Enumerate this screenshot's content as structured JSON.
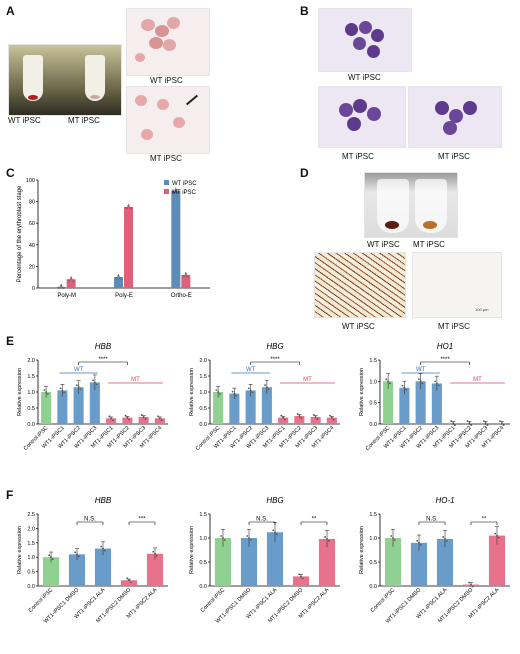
{
  "panels": {
    "A": {
      "letter": "A",
      "caption_left_wt": "WT iPSC",
      "caption_left_mt": "MT iPSC",
      "caption_right_top": "WT iPSC",
      "caption_right_bottom": "MT iPSC"
    },
    "B": {
      "letter": "B",
      "caption_top": "WT iPSC",
      "caption_bottom_left": "MT iPSC",
      "caption_bottom_right": "MT iPSC"
    },
    "C": {
      "letter": "C"
    },
    "D": {
      "letter": "D",
      "caption_tube_wt": "WT iPSC",
      "caption_tube_mt": "MT iPSC",
      "caption_stain_wt": "WT iPSC",
      "caption_stain_mt": "MT iPSC",
      "scale_text": "100 µm"
    },
    "E": {
      "letter": "E"
    },
    "F": {
      "letter": "F"
    }
  },
  "chart_data": [
    {
      "id": "C",
      "type": "bar",
      "categories": [
        "Poly-M",
        "Poly-E",
        "Ortho-E"
      ],
      "ylabel": "Percentage of the erythroblast stage",
      "ylim": [
        0,
        100
      ],
      "yticks": [
        0,
        20,
        40,
        60,
        80,
        100
      ],
      "series": [
        {
          "name": "WT iPSC",
          "color": "#5b8db8",
          "values": [
            1,
            10,
            90
          ]
        },
        {
          "name": "MT iPSC",
          "color": "#e0607a",
          "values": [
            8,
            75,
            12
          ]
        }
      ],
      "legend": "top-right"
    },
    {
      "id": "E1",
      "type": "bar",
      "title": "HBB",
      "ylabel": "Relative expression",
      "categories": [
        "Control iPSC",
        "WT1-iPSC1",
        "WT1-iPSC2",
        "WT1-iPSC3",
        "MT1-iPSC1",
        "MT1-iPSC2",
        "MT1-iPSC3",
        "MT1-iPSC4"
      ],
      "values": [
        1.0,
        1.05,
        1.15,
        1.3,
        0.18,
        0.2,
        0.22,
        0.18
      ],
      "colors": [
        "#90d090",
        "#6a9cc9",
        "#6a9cc9",
        "#6a9cc9",
        "#e8728c",
        "#e8728c",
        "#e8728c",
        "#e8728c"
      ],
      "ylim": [
        0,
        2.0
      ],
      "yticks": [
        0.0,
        0.5,
        1.0,
        1.5,
        2.0
      ],
      "groups": {
        "wt": "WT",
        "mt": "MT"
      },
      "significance": "****"
    },
    {
      "id": "E2",
      "type": "bar",
      "title": "HBG",
      "ylabel": "Relative expression",
      "categories": [
        "Control iPSC",
        "WT1-iPSC1",
        "WT1-iPSC2",
        "WT1-iPSC3",
        "MT1-iPSC1",
        "MT1-iPSC2",
        "MT1-iPSC3",
        "MT1-iPSC4"
      ],
      "values": [
        1.0,
        0.95,
        1.05,
        1.15,
        0.2,
        0.25,
        0.22,
        0.2
      ],
      "colors": [
        "#90d090",
        "#6a9cc9",
        "#6a9cc9",
        "#6a9cc9",
        "#e8728c",
        "#e8728c",
        "#e8728c",
        "#e8728c"
      ],
      "ylim": [
        0,
        2.0
      ],
      "yticks": [
        0.0,
        0.5,
        1.0,
        1.5,
        2.0
      ],
      "groups": {
        "wt": "WT",
        "mt": "MT"
      },
      "significance": "****"
    },
    {
      "id": "E3",
      "type": "bar",
      "title": "HO1",
      "ylabel": "Relative expression",
      "categories": [
        "Control iPSC",
        "WT1-iPSC1",
        "WT1-iPSC2",
        "WT1-iPSC3",
        "MT1-iPSC1",
        "MT1-iPSC2",
        "MT1-iPSC3",
        "MT1-iPSC4"
      ],
      "values": [
        1.0,
        0.85,
        1.0,
        0.95,
        0.02,
        0.02,
        0.02,
        0.02
      ],
      "colors": [
        "#90d090",
        "#6a9cc9",
        "#6a9cc9",
        "#6a9cc9",
        "#e8728c",
        "#e8728c",
        "#e8728c",
        "#e8728c"
      ],
      "ylim": [
        0,
        1.5
      ],
      "yticks": [
        0.0,
        0.5,
        1.0,
        1.5
      ],
      "groups": {
        "wt": "WT",
        "mt": "MT"
      },
      "significance": "****"
    },
    {
      "id": "F1",
      "type": "bar",
      "title": "HBB",
      "ylabel": "Relative expression",
      "categories": [
        "Control iPSC",
        "WT1-iPSC1 DMSO",
        "WT1-iPSC1 ALA",
        "MT1-iPSC2 DMSO",
        "MT1-iPSC2 ALA"
      ],
      "values": [
        1.0,
        1.1,
        1.3,
        0.2,
        1.12
      ],
      "colors": [
        "#90d090",
        "#6a9cc9",
        "#6a9cc9",
        "#e8728c",
        "#e8728c"
      ],
      "ylim": [
        0,
        2.5
      ],
      "yticks": [
        0.0,
        0.5,
        1.0,
        1.5,
        2.0,
        2.5
      ],
      "sig_left": "N.S.",
      "sig_right": "***"
    },
    {
      "id": "F2",
      "type": "bar",
      "title": "HBG",
      "ylabel": "Relative expression",
      "categories": [
        "Control iPSC",
        "WT1-iPSC1 DMSO",
        "WT1-iPSC1 ALA",
        "MT1-iPSC2 DMSO",
        "MT1-iPSC2 ALA"
      ],
      "values": [
        1.0,
        1.0,
        1.12,
        0.2,
        0.98
      ],
      "colors": [
        "#90d090",
        "#6a9cc9",
        "#6a9cc9",
        "#e8728c",
        "#e8728c"
      ],
      "ylim": [
        0,
        1.5
      ],
      "yticks": [
        0.0,
        0.5,
        1.0,
        1.5
      ],
      "sig_left": "N.S.",
      "sig_right": "**"
    },
    {
      "id": "F3",
      "type": "bar",
      "title": "HO-1",
      "ylabel": "Relative expression",
      "categories": [
        "Control iPSC",
        "WT1-iPSC1 DMSO",
        "WT1-iPSC1 ALA",
        "MT1-iPSC2 DMSO",
        "MT1-iPSC2 ALA"
      ],
      "values": [
        1.0,
        0.9,
        0.98,
        0.03,
        1.05
      ],
      "colors": [
        "#90d090",
        "#6a9cc9",
        "#6a9cc9",
        "#e8728c",
        "#e8728c"
      ],
      "ylim": [
        0,
        1.5
      ],
      "yticks": [
        0.0,
        0.5,
        1.0,
        1.5
      ],
      "sig_left": "N.S.",
      "sig_right": "**"
    }
  ]
}
